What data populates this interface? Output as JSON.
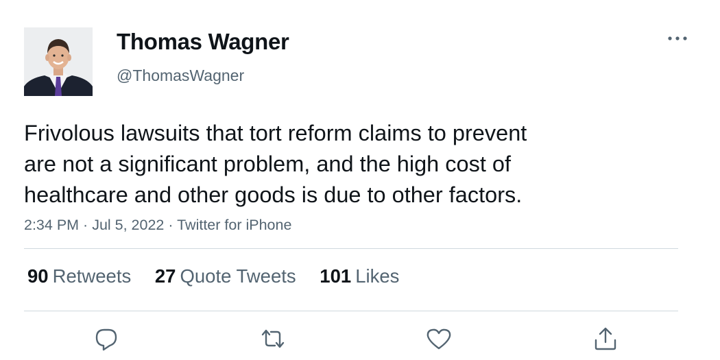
{
  "author": {
    "display_name": "Thomas Wagner",
    "handle": "@ThomasWagner",
    "avatar_icon": "profile-photo"
  },
  "tweet": {
    "text_lines": [
      "Frivolous lawsuits that tort reform claims to prevent",
      "are not a significant problem, and the high cost of",
      "healthcare and other goods is due to other factors."
    ],
    "time": "2:34 PM",
    "separator": " · ",
    "date": "Jul 5, 2022",
    "source": "Twitter for iPhone"
  },
  "stats": {
    "retweets": {
      "count": "90",
      "label": "Retweets"
    },
    "quote_tweets": {
      "count": "27",
      "label": "Quote Tweets"
    },
    "likes": {
      "count": "101",
      "label": "Likes"
    }
  },
  "actions": [
    {
      "icon": "reply-icon"
    },
    {
      "icon": "retweet-icon"
    },
    {
      "icon": "like-icon"
    },
    {
      "icon": "share-icon"
    }
  ],
  "colors": {
    "primary_text": "#0f1419",
    "secondary_text": "#536471",
    "divider": "#cfd9de",
    "background": "#ffffff"
  }
}
